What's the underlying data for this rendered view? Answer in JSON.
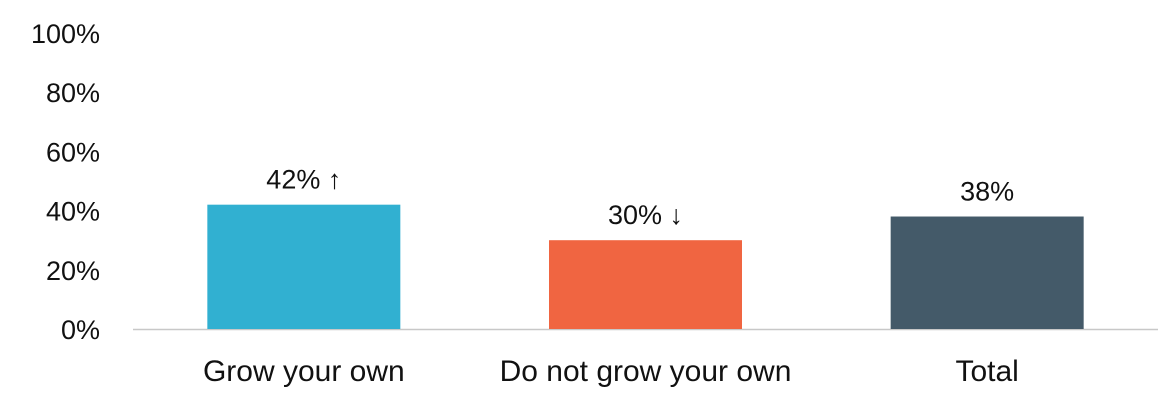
{
  "chart_data": {
    "type": "bar",
    "categories": [
      "Grow your own",
      "Do not grow your own",
      "Total"
    ],
    "values": [
      42,
      30,
      38
    ],
    "data_labels": [
      "42% ↑",
      "30% ↓",
      "38%"
    ],
    "bar_colors": [
      "#31b0d1",
      "#f06541",
      "#445a69"
    ],
    "ylim": [
      0,
      100
    ],
    "yticks": [
      "0%",
      "20%",
      "40%",
      "60%",
      "80%",
      "100%"
    ],
    "ytick_values": [
      0,
      20,
      40,
      60,
      80,
      100
    ],
    "grid": false,
    "legend": "none",
    "title": "",
    "xlabel": "",
    "ylabel": ""
  }
}
